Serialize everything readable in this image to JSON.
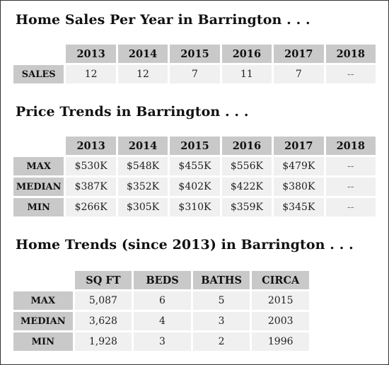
{
  "sales": {
    "title": "Home Sales Per Year in Barrington . . .",
    "years": [
      "2013",
      "2014",
      "2015",
      "2016",
      "2017",
      "2018"
    ],
    "row_label": "SALES",
    "values": [
      "12",
      "12",
      "7",
      "11",
      "7",
      "--"
    ]
  },
  "prices": {
    "title": "Price Trends in Barrington . . .",
    "years": [
      "2013",
      "2014",
      "2015",
      "2016",
      "2017",
      "2018"
    ],
    "rows": [
      {
        "label": "MAX",
        "values": [
          "$530K",
          "$548K",
          "$455K",
          "$556K",
          "$479K",
          "--"
        ]
      },
      {
        "label": "MEDIAN",
        "values": [
          "$387K",
          "$352K",
          "$402K",
          "$422K",
          "$380K",
          "--"
        ]
      },
      {
        "label": "MIN",
        "values": [
          "$266K",
          "$305K",
          "$310K",
          "$359K",
          "$345K",
          "--"
        ]
      }
    ]
  },
  "homes": {
    "title": "Home Trends (since 2013) in Barrington . . .",
    "columns": [
      "SQ FT",
      "BEDS",
      "BATHS",
      "CIRCA"
    ],
    "rows": [
      {
        "label": "MAX",
        "values": [
          "5,087",
          "6",
          "5",
          "2015"
        ]
      },
      {
        "label": "MEDIAN",
        "values": [
          "3,628",
          "4",
          "3",
          "2003"
        ]
      },
      {
        "label": "MIN",
        "values": [
          "1,928",
          "3",
          "2",
          "1996"
        ]
      }
    ]
  }
}
